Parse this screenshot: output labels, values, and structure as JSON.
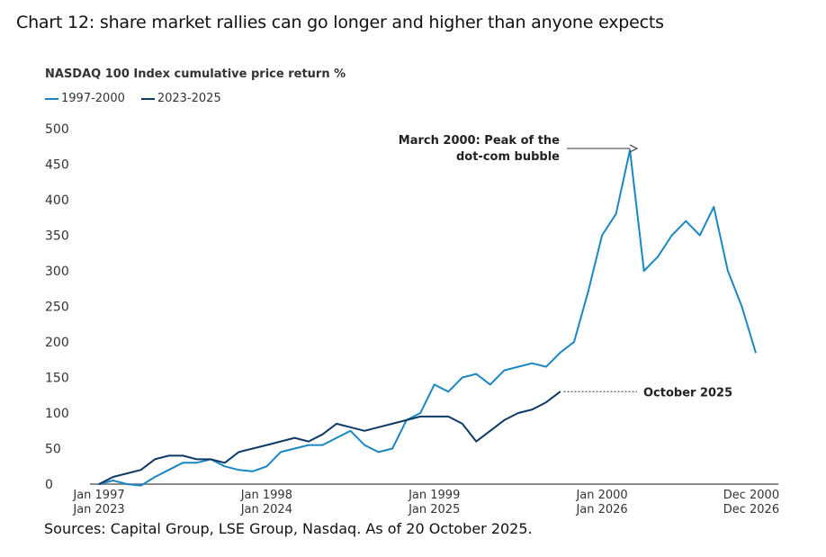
{
  "title": "Chart 12: share market rallies can go longer and higher than anyone expects",
  "source": "Sources: Capital Group, LSE Group, Nasdaq. As of 20 October 2025.",
  "chart_data": {
    "type": "line",
    "title": "NASDAQ 100 Index cumulative price return %",
    "ylabel": "",
    "ylim": [
      0,
      500
    ],
    "yticks": [
      0,
      50,
      100,
      150,
      200,
      250,
      300,
      350,
      400,
      450,
      500
    ],
    "grid": false,
    "legend": "top-left",
    "xticks": [
      {
        "line1": "Jan 1997",
        "line2": "Jan 2023",
        "month": 0
      },
      {
        "line1": "Jan 1998",
        "line2": "Jan 2024",
        "month": 12
      },
      {
        "line1": "Jan 1999",
        "line2": "Jan 2025",
        "month": 24
      },
      {
        "line1": "Jan 2000",
        "line2": "Jan 2026",
        "month": 36
      },
      {
        "line1": "Dec 2000",
        "line2": "Dec 2026",
        "month": 47
      }
    ],
    "series": [
      {
        "name": "1997-2000",
        "color": "#1a87c2",
        "start": "1997-01",
        "values": [
          0,
          5,
          0,
          -2,
          10,
          20,
          30,
          30,
          35,
          25,
          20,
          18,
          25,
          45,
          50,
          55,
          55,
          65,
          75,
          55,
          45,
          50,
          90,
          100,
          140,
          130,
          150,
          155,
          140,
          160,
          165,
          170,
          165,
          185,
          200,
          270,
          350,
          380,
          470,
          300,
          320,
          350,
          370,
          350,
          390,
          300,
          250,
          185
        ]
      },
      {
        "name": "2023-2025",
        "color": "#0d3a66",
        "start": "2023-01",
        "values": [
          0,
          10,
          15,
          20,
          35,
          40,
          40,
          35,
          35,
          30,
          45,
          50,
          55,
          60,
          65,
          60,
          70,
          85,
          80,
          75,
          80,
          85,
          90,
          95,
          95,
          95,
          85,
          60,
          75,
          90,
          100,
          105,
          115,
          130
        ]
      }
    ],
    "annotations": [
      {
        "text_line1": "March 2000: Peak of the",
        "text_line2": "dot-com bubble",
        "series": "1997-2000",
        "month": 38
      },
      {
        "text": "October 2025",
        "series": "2023-2025",
        "month": 33
      }
    ]
  }
}
